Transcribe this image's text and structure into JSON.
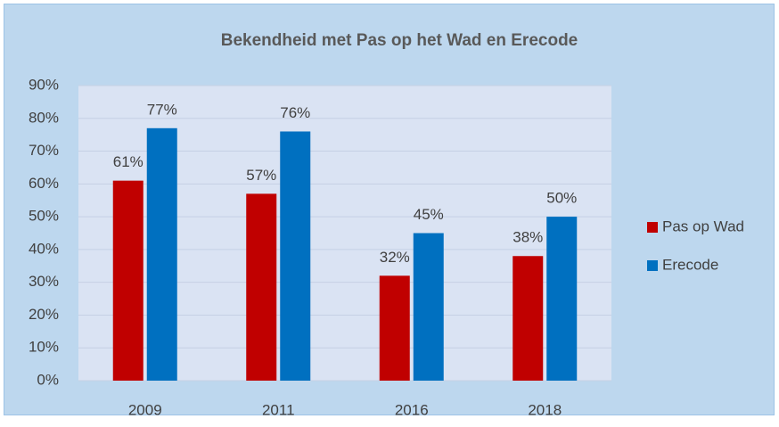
{
  "chart_data": {
    "type": "bar",
    "title": "Bekendheid met Pas op het Wad en Erecode",
    "categories": [
      "2009",
      "2011",
      "2016",
      "2018"
    ],
    "series": [
      {
        "name": "Pas op Wad",
        "color": "#c00000",
        "values": [
          61,
          57,
          32,
          38
        ],
        "value_labels": [
          "61%",
          "57%",
          "32%",
          "38%"
        ]
      },
      {
        "name": "Erecode",
        "color": "#0070c0",
        "values": [
          77,
          76,
          45,
          50
        ],
        "value_labels": [
          "77%",
          "76%",
          "45%",
          "50%"
        ]
      }
    ],
    "ylim": [
      0,
      90
    ],
    "yticks": [
      {
        "value": 0,
        "label": "0%"
      },
      {
        "value": 10,
        "label": "10%"
      },
      {
        "value": 20,
        "label": "20%"
      },
      {
        "value": 30,
        "label": "30%"
      },
      {
        "value": 40,
        "label": "40%"
      },
      {
        "value": 50,
        "label": "50%"
      },
      {
        "value": 60,
        "label": "60%"
      },
      {
        "value": 70,
        "label": "70%"
      },
      {
        "value": 80,
        "label": "80%"
      },
      {
        "value": 90,
        "label": "90%"
      }
    ],
    "grid": true,
    "legend": "right"
  }
}
